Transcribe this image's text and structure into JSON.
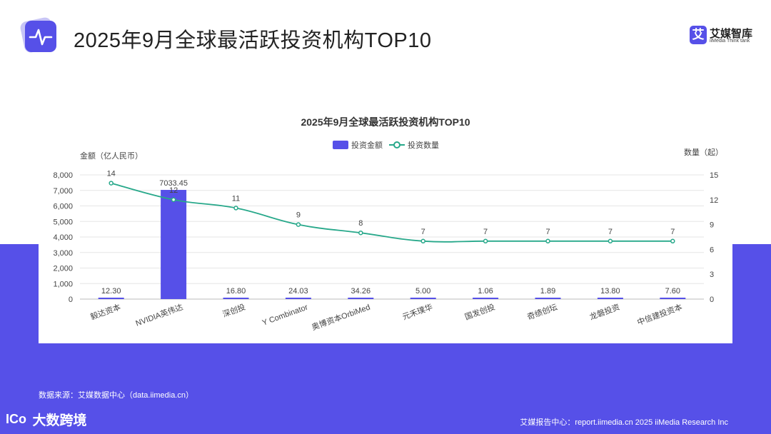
{
  "header": {
    "title": "2025年9月全球最活跃投资机构TOP10",
    "icon": "pulse-icon"
  },
  "brand": {
    "logo_glyph": "艾",
    "name": "艾媒智库",
    "sub": "iiMedia Think tank"
  },
  "colors": {
    "accent": "#5650e8",
    "line": "#27a88a",
    "band": "#5650e8"
  },
  "chart_data": {
    "type": "bar",
    "title": "2025年9月全球最活跃投资机构TOP10",
    "categories": [
      "毅达资本",
      "NVIDIA英伟达",
      "深创投",
      "Y Combinator",
      "奥博资本OrbiMed",
      "元禾璞华",
      "国发创投",
      "奇绩创坛",
      "龙磐投资",
      "中信建投资本"
    ],
    "ylabel": "金额（亿人民币）",
    "y2label": "数量（起）",
    "ylim": [
      0,
      8000
    ],
    "y2lim": [
      0,
      15
    ],
    "yticks": [
      "0",
      "1,000",
      "2,000",
      "3,000",
      "4,000",
      "5,000",
      "6,000",
      "7,000",
      "8,000"
    ],
    "y2ticks": [
      "0",
      "3",
      "6",
      "9",
      "12",
      "15"
    ],
    "series": [
      {
        "name": "投资金额",
        "type": "bar",
        "values": [
          12.3,
          7033.45,
          16.8,
          24.03,
          34.26,
          5.0,
          1.06,
          1.89,
          13.8,
          7.6
        ],
        "labels": [
          "12.30",
          "7033.45",
          "16.80",
          "24.03",
          "34.26",
          "5.00",
          "1.06",
          "1.89",
          "13.80",
          "7.60"
        ]
      },
      {
        "name": "投资数量",
        "type": "line",
        "axis": "right",
        "values": [
          14,
          12,
          11,
          9,
          8,
          7,
          7,
          7,
          7,
          7
        ],
        "labels": [
          "14",
          "12",
          "11",
          "9",
          "8",
          "7",
          "7",
          "7",
          "7",
          "7"
        ]
      }
    ],
    "legend_position": "top-center",
    "grid": true
  },
  "footer": {
    "source": "数据来源：艾媒数据中心（data.iimedia.cn）",
    "left_brand_mark": "ICo",
    "left_brand_name": "大数跨境",
    "right": "艾媒报告中心：report.iimedia.cn   2025 iiMedia Research Inc"
  }
}
